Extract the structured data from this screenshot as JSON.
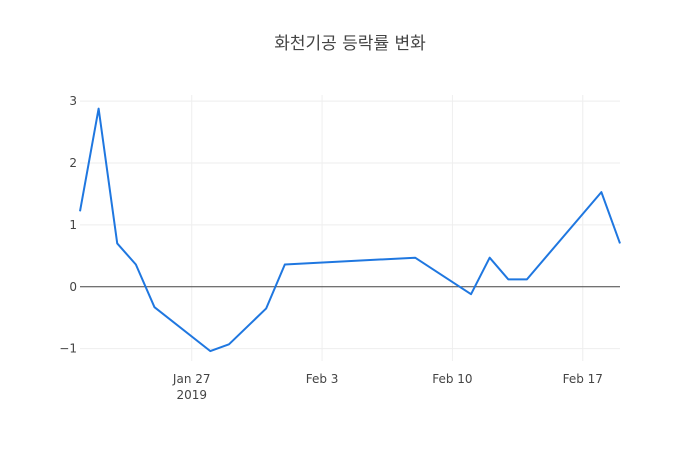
{
  "chart_data": {
    "type": "line",
    "title": "화천기공 등락률 변화",
    "xlabel": "",
    "ylabel": "",
    "x_axis": {
      "type": "date",
      "range": [
        "2019-01-21",
        "2019-02-19"
      ],
      "ticks": [
        {
          "date": "2019-01-27",
          "label": "Jan 27",
          "sublabel": "2019"
        },
        {
          "date": "2019-02-03",
          "label": "Feb 3",
          "sublabel": ""
        },
        {
          "date": "2019-02-10",
          "label": "Feb 10",
          "sublabel": ""
        },
        {
          "date": "2019-02-17",
          "label": "Feb 17",
          "sublabel": ""
        }
      ]
    },
    "y_axis": {
      "range": [
        -1.2,
        3.1
      ],
      "ticks": [
        {
          "value": 3,
          "label": "3"
        },
        {
          "value": 2,
          "label": "2"
        },
        {
          "value": 1,
          "label": "1"
        },
        {
          "value": 0,
          "label": "0"
        },
        {
          "value": -1,
          "label": "−1"
        }
      ],
      "zeroline": true
    },
    "grid": true,
    "series": [
      {
        "color": "#1f77e0",
        "x": [
          "2019-01-21",
          "2019-01-22",
          "2019-01-23",
          "2019-01-24",
          "2019-01-25",
          "2019-01-28",
          "2019-01-29",
          "2019-01-31",
          "2019-02-01",
          "2019-02-08",
          "2019-02-11",
          "2019-02-12",
          "2019-02-13",
          "2019-02-14",
          "2019-02-18",
          "2019-02-19"
        ],
        "y": [
          1.22,
          2.88,
          0.7,
          0.36,
          -0.33,
          -1.04,
          -0.93,
          -0.35,
          0.36,
          0.47,
          -0.12,
          0.47,
          0.12,
          0.12,
          1.53,
          0.7
        ]
      }
    ]
  }
}
